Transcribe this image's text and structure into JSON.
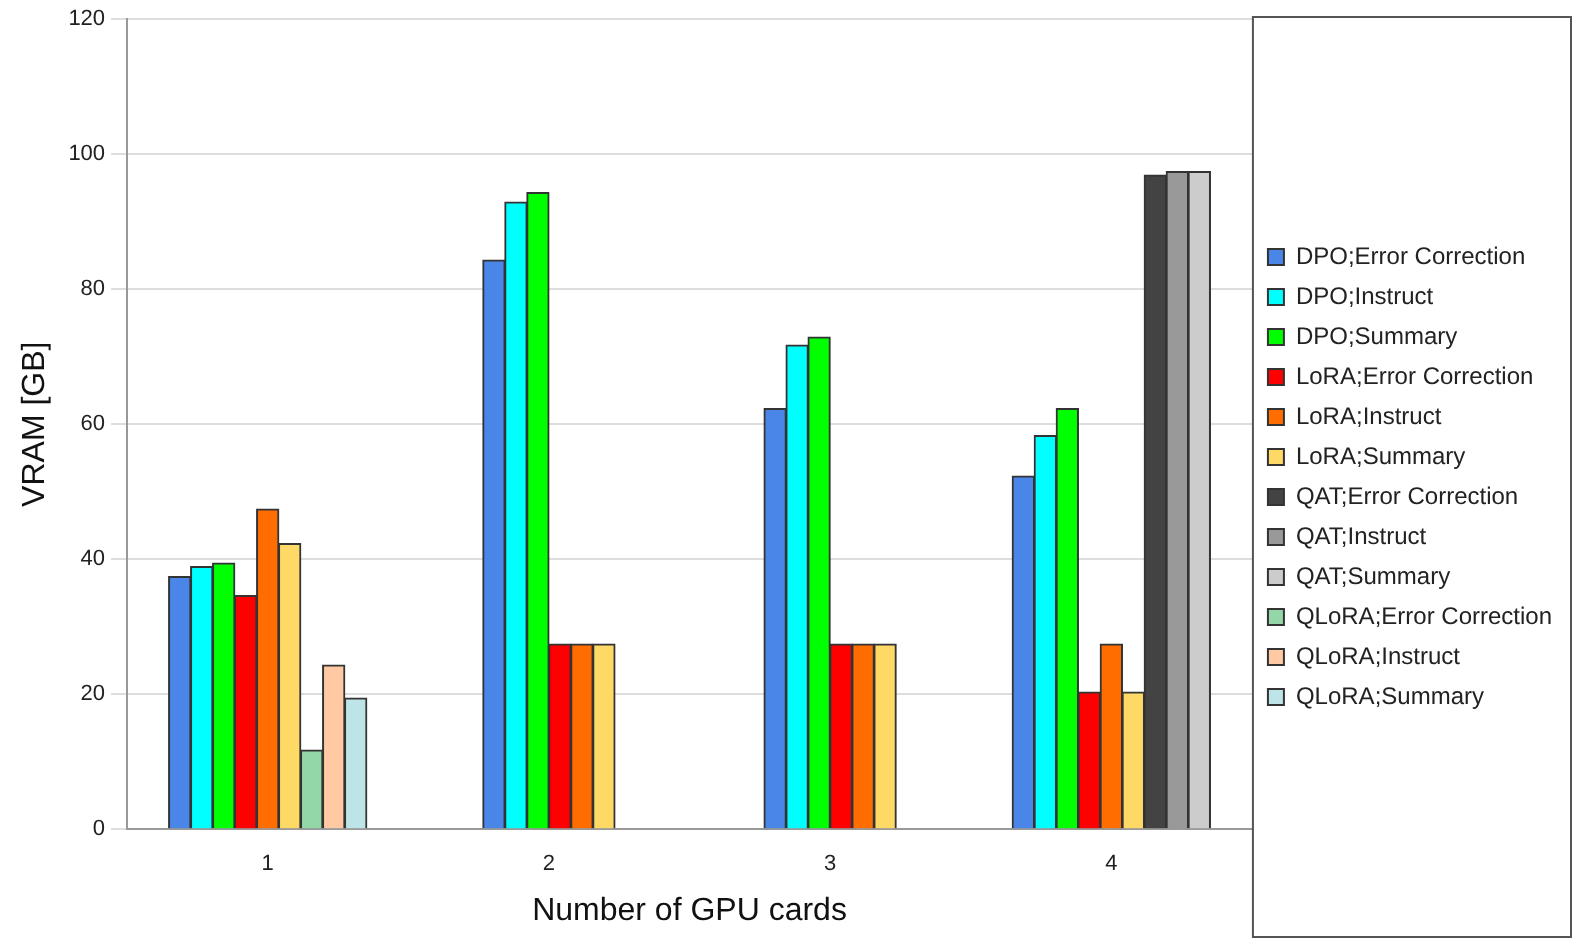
{
  "chart_data": {
    "type": "bar",
    "xlabel": "Number of GPU cards",
    "ylabel": "VRAM [GB]",
    "categories": [
      "1",
      "2",
      "3",
      "4"
    ],
    "series": [
      {
        "name": "DPO;Error Correction",
        "color": "#4a86e8",
        "values": [
          37.4,
          84.3,
          62.3,
          52.3
        ]
      },
      {
        "name": "DPO;Instruct",
        "color": "#00ffff",
        "values": [
          38.9,
          92.9,
          71.7,
          58.3
        ]
      },
      {
        "name": "DPO;Summary",
        "color": "#00ff00",
        "values": [
          39.4,
          94.3,
          72.9,
          62.3
        ]
      },
      {
        "name": "LoRA;Error Correction",
        "color": "#ff0000",
        "values": [
          34.6,
          27.4,
          27.4,
          20.3
        ]
      },
      {
        "name": "LoRA;Instruct",
        "color": "#ff6d01",
        "values": [
          47.4,
          27.4,
          27.4,
          27.4
        ]
      },
      {
        "name": "LoRA;Summary",
        "color": "#ffd966",
        "values": [
          42.3,
          27.4,
          27.4,
          20.3
        ]
      },
      {
        "name": "QAT;Error Correction",
        "color": "#434343",
        "values": [
          null,
          null,
          null,
          96.9
        ]
      },
      {
        "name": "QAT;Instruct",
        "color": "#999999",
        "values": [
          null,
          null,
          null,
          97.4
        ]
      },
      {
        "name": "QAT;Summary",
        "color": "#cccccc",
        "values": [
          null,
          null,
          null,
          97.4
        ]
      },
      {
        "name": "QLoRA;Error Correction",
        "color": "#93d7a8",
        "values": [
          11.7,
          null,
          null,
          null
        ]
      },
      {
        "name": "QLoRA;Instruct",
        "color": "#ffc9a3",
        "values": [
          24.3,
          null,
          null,
          null
        ]
      },
      {
        "name": "QLoRA;Summary",
        "color": "#bde5e8",
        "values": [
          19.4,
          null,
          null,
          null
        ]
      }
    ],
    "ylim": [
      0,
      120
    ],
    "yticks": [
      0,
      20,
      40,
      60,
      80,
      100,
      120
    ],
    "grid": "y",
    "legend": "right"
  }
}
